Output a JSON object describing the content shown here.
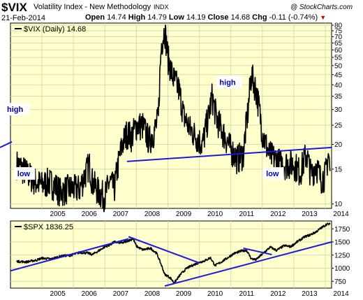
{
  "header": {
    "ticker": "$VIX",
    "name": "Volatility Index - New Methodology",
    "exchange": "INDX",
    "credit": "@ StockCharts.com",
    "date": "21-Feb-2014",
    "open_label": "Open",
    "open": "14.74",
    "high_label": "High",
    "high": "14.79",
    "low_label": "Low",
    "low": "14.19",
    "close_label": "Close",
    "close": "14.68",
    "chg_label": "Chg",
    "chg": "-0.11 (-0.74%)",
    "chg_arrow": "▼"
  },
  "colors": {
    "panel_bg": "#ffffcc",
    "grid": "#d8d8b8",
    "series": "#000000",
    "trendline": "#1a1adf",
    "chg_arrow": "#c00000",
    "label_text": "#0000aa"
  },
  "chart_data": [
    {
      "type": "line",
      "legend": "$VIX (Daily) 14.68",
      "x_tick_labels": [
        "2005",
        "2006",
        "2007",
        "2008",
        "2009",
        "2010",
        "2011",
        "2012",
        "2013",
        "2014"
      ],
      "y_scale": "log",
      "ylim": [
        9.5,
        82
      ],
      "y_ticks": [
        10,
        15,
        20,
        25,
        30,
        35,
        40,
        45,
        50,
        55,
        60,
        65,
        70,
        75,
        80
      ],
      "grid": true,
      "series": [
        {
          "x": [
            2004.2,
            2004.4,
            2004.6,
            2004.8,
            2005.0,
            2005.2,
            2005.4,
            2005.6,
            2005.8,
            2006.0,
            2006.2,
            2006.4,
            2006.5,
            2006.6,
            2006.8,
            2007.0,
            2007.15,
            2007.3,
            2007.55,
            2007.7,
            2007.85,
            2008.0,
            2008.2,
            2008.4,
            2008.55,
            2008.7,
            2008.8,
            2008.9,
            2009.0,
            2009.15,
            2009.35,
            2009.5,
            2009.7,
            2009.9,
            2010.1,
            2010.3,
            2010.4,
            2010.55,
            2010.75,
            2011.0,
            2011.2,
            2011.4,
            2011.55,
            2011.65,
            2011.8,
            2012.0,
            2012.2,
            2012.4,
            2012.6,
            2012.8,
            2013.0,
            2013.2,
            2013.4,
            2013.55,
            2013.7,
            2013.85,
            2014.0,
            2014.1,
            2014.15
          ],
          "values": [
            16,
            15,
            14,
            13,
            12.5,
            13,
            12.5,
            11.5,
            12,
            12,
            12,
            14.5,
            16,
            13,
            11.5,
            11,
            13,
            12,
            20,
            23,
            22,
            25,
            25,
            21,
            23,
            27,
            65,
            76,
            55,
            44,
            38,
            28,
            24,
            22,
            20,
            28,
            35,
            27,
            23,
            19,
            17,
            18,
            30,
            45,
            38,
            23,
            18,
            17,
            16,
            16,
            16,
            14.5,
            18,
            14,
            16,
            13.5,
            14,
            18,
            14.68
          ]
        }
      ],
      "trendline": {
        "from": {
          "x": 2007.7,
          "y": 16.4
        },
        "to": {
          "x": 2014.2,
          "y": 19.3
        }
      },
      "annotations": [
        {
          "text": "high",
          "x": 2004.2,
          "y": 30
        },
        {
          "text": "high",
          "x": 2010.95,
          "y": 41
        },
        {
          "text": "low",
          "x": 2004.45,
          "y": 14.2
        },
        {
          "text": "low",
          "x": 2012.35,
          "y": 14.2
        }
      ]
    },
    {
      "type": "line",
      "legend": "$SPX 1836.25",
      "x_tick_labels": [
        "2005",
        "2006",
        "2007",
        "2008",
        "2009",
        "2010",
        "2011",
        "2012",
        "2013",
        "2014"
      ],
      "ylim": [
        620,
        1900
      ],
      "y_ticks": [
        750,
        1000,
        1250,
        1500,
        1750
      ],
      "grid": true,
      "series": [
        {
          "x": [
            2004.2,
            2004.5,
            2004.8,
            2005.0,
            2005.3,
            2005.6,
            2005.9,
            2006.2,
            2006.45,
            2006.6,
            2006.8,
            2007.0,
            2007.15,
            2007.3,
            2007.55,
            2007.75,
            2007.9,
            2008.0,
            2008.2,
            2008.45,
            2008.65,
            2008.8,
            2008.9,
            2009.0,
            2009.1,
            2009.2,
            2009.4,
            2009.6,
            2009.8,
            2010.0,
            2010.2,
            2010.35,
            2010.5,
            2010.7,
            2010.9,
            2011.1,
            2011.35,
            2011.5,
            2011.65,
            2011.8,
            2012.0,
            2012.25,
            2012.45,
            2012.7,
            2012.9,
            2013.1,
            2013.35,
            2013.5,
            2013.7,
            2013.9,
            2014.05,
            2014.15
          ],
          "values": [
            1130,
            1120,
            1150,
            1190,
            1175,
            1230,
            1245,
            1300,
            1290,
            1260,
            1330,
            1410,
            1440,
            1500,
            1480,
            1530,
            1560,
            1420,
            1350,
            1380,
            1280,
            1050,
            880,
            850,
            800,
            720,
            880,
            1000,
            1060,
            1110,
            1150,
            1200,
            1050,
            1120,
            1200,
            1280,
            1330,
            1340,
            1180,
            1160,
            1270,
            1400,
            1340,
            1430,
            1410,
            1500,
            1600,
            1630,
            1690,
            1780,
            1840,
            1836
          ]
        }
      ],
      "trendlines": [
        {
          "from": {
            "x": 2004.0,
            "y": 950
          },
          "to": {
            "x": 2007.75,
            "y": 1560
          }
        },
        {
          "from": {
            "x": 2007.75,
            "y": 1600
          },
          "to": {
            "x": 2010.0,
            "y": 1100
          }
        },
        {
          "from": {
            "x": 2008.9,
            "y": 660
          },
          "to": {
            "x": 2014.2,
            "y": 1500
          }
        },
        {
          "from": {
            "x": 2011.4,
            "y": 1380
          },
          "to": {
            "x": 2012.3,
            "y": 1260
          }
        }
      ]
    }
  ]
}
